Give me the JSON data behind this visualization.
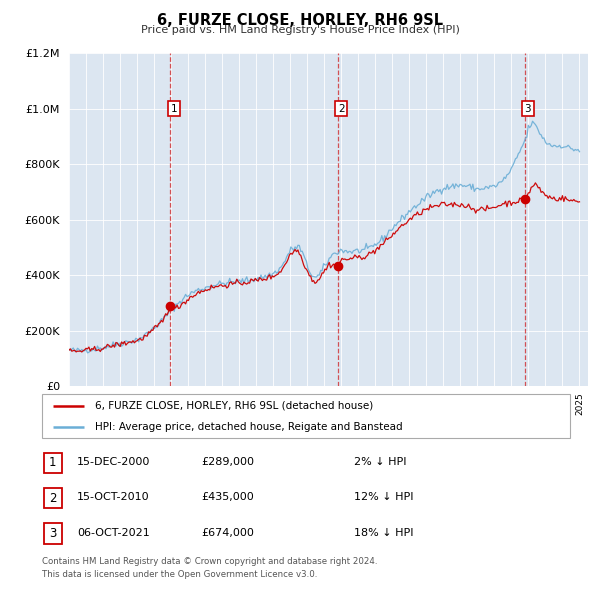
{
  "title": "6, FURZE CLOSE, HORLEY, RH6 9SL",
  "subtitle": "Price paid vs. HM Land Registry's House Price Index (HPI)",
  "legend_label_red": "6, FURZE CLOSE, HORLEY, RH6 9SL (detached house)",
  "legend_label_blue": "HPI: Average price, detached house, Reigate and Banstead",
  "footer_line1": "Contains HM Land Registry data © Crown copyright and database right 2024.",
  "footer_line2": "This data is licensed under the Open Government Licence v3.0.",
  "transactions": [
    {
      "num": 1,
      "date": "15-DEC-2000",
      "price": "£289,000",
      "hpi_diff": "2% ↓ HPI",
      "year": 2000.96,
      "price_val": 289000
    },
    {
      "num": 2,
      "date": "15-OCT-2010",
      "price": "£435,000",
      "hpi_diff": "12% ↓ HPI",
      "year": 2010.79,
      "price_val": 435000
    },
    {
      "num": 3,
      "date": "06-OCT-2021",
      "price": "£674,000",
      "hpi_diff": "18% ↓ HPI",
      "year": 2021.77,
      "price_val": 674000
    }
  ],
  "ylim": [
    0,
    1200000
  ],
  "xlim_start": 1995,
  "xlim_end": 2025.3,
  "plot_bg_color": "#dce6f1",
  "red_color": "#cc0000",
  "blue_color": "#6baed6",
  "grid_color": "#ffffff",
  "ann_y": 1000000,
  "ann_offsets": [
    0.4,
    0.4,
    0.4
  ]
}
